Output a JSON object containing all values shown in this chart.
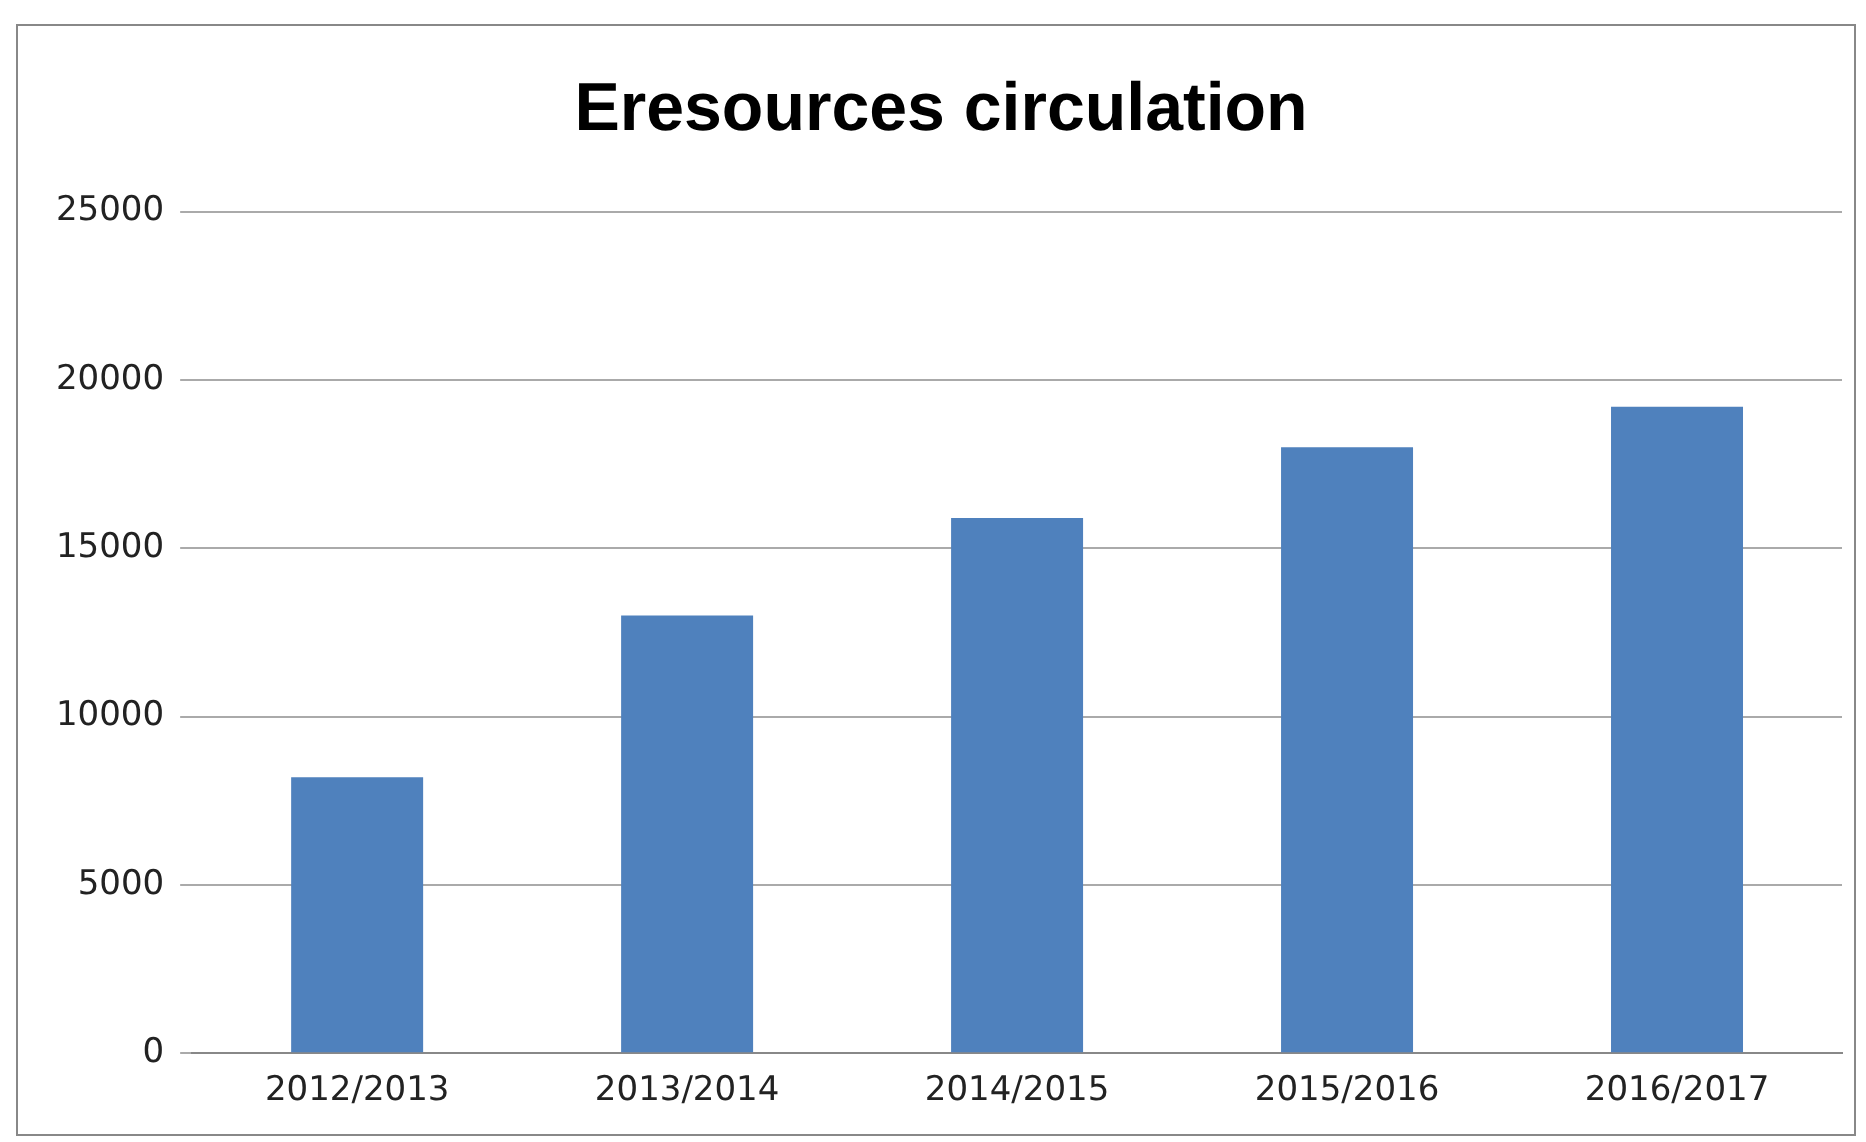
{
  "chart_data": {
    "type": "bar",
    "title": "Eresources circulation",
    "categories": [
      "2012/2013",
      "2013/2014",
      "2014/2015",
      "2015/2016",
      "2016/2017"
    ],
    "values": [
      8200,
      13000,
      15900,
      18000,
      19200
    ],
    "color": "#4f81bd",
    "ylim": [
      0,
      25000
    ],
    "yticks": [
      0,
      5000,
      10000,
      15000,
      20000,
      25000
    ],
    "grid": "y",
    "legend": false
  }
}
